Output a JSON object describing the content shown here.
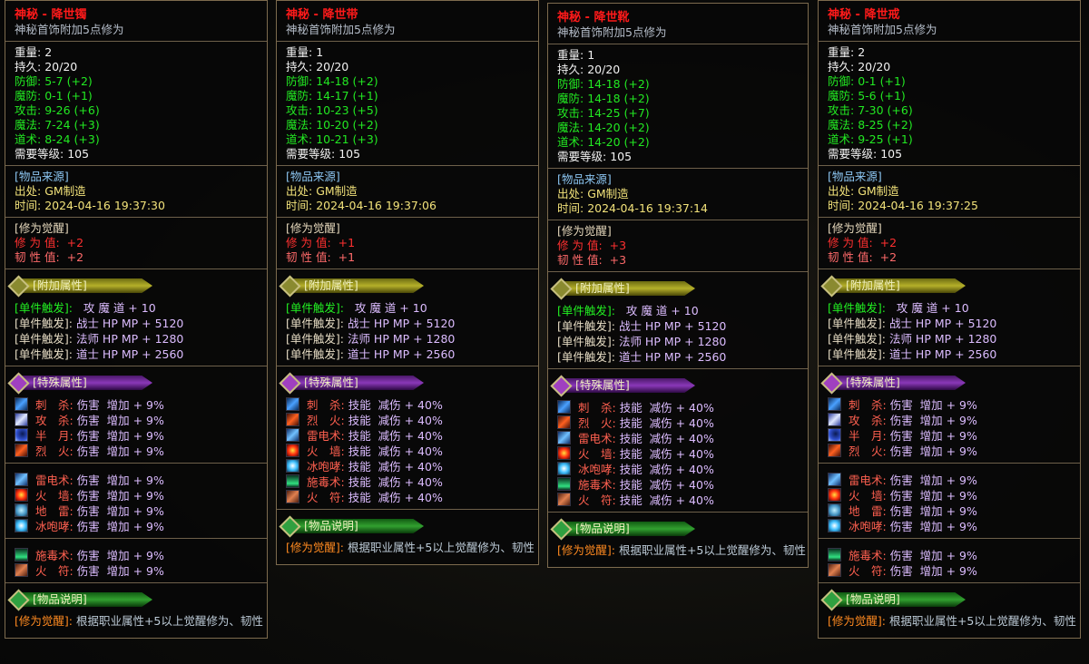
{
  "colors": {
    "title": "#ff1a1a",
    "stat_green": "#22e822",
    "source_header": "#8cc6f2",
    "source_value": "#f2e27a",
    "awaken_value": "#ff3030",
    "skill": "#ff6050",
    "effect": "#dcbcff",
    "desc_tag": "#ff8a20",
    "border": "#7d6b4e"
  },
  "skill_icons": {
    "cisha": "linear-gradient(135deg,#0a2a5a,#4aa0ff 50%,#0a2a5a)",
    "gongsha": "linear-gradient(135deg,#3040a0,#e0e8ff 50%,#3040a0)",
    "banyue": "radial-gradient(circle at 60% 40%,#0a1a50,#3050d0 60%,#a0c0ff)",
    "liehuo": "linear-gradient(135deg,#401008,#ff6020 50%,#401008)",
    "leidian": "linear-gradient(135deg,#10306a,#70c0ff 50%,#10306a)",
    "huoqiang": "radial-gradient(circle,#ffe040,#ff3010 50%,#400808)",
    "dilei": "radial-gradient(circle,#c0f0ff,#4090c0 60%,#203040)",
    "bingpaoxiao": "radial-gradient(circle,#ffffff,#40c0ff 50%,#104060)",
    "shidu": "linear-gradient(180deg,#0a3020,#30e080 70%,#0a3020)",
    "huofu": "linear-gradient(135deg,#502010,#e08050 50%,#502010)"
  },
  "panels": [
    {
      "title": "神秘 - 降世镯",
      "subtitle": "神秘首饰附加5点修为",
      "stats": [
        {
          "label": "重量",
          "value": "2",
          "color": "white"
        },
        {
          "label": "持久",
          "value": "20/20",
          "color": "white"
        },
        {
          "label": "防御",
          "value": "5-7 (+2)",
          "color": "green"
        },
        {
          "label": "魔防",
          "value": "0-1 (+1)",
          "color": "green"
        },
        {
          "label": "攻击",
          "value": "9-26 (+6)",
          "color": "green"
        },
        {
          "label": "魔法",
          "value": "7-24 (+3)",
          "color": "green"
        },
        {
          "label": "道术",
          "value": "8-24 (+3)",
          "color": "green"
        },
        {
          "label": "需要等级",
          "value": "105",
          "color": "white"
        }
      ],
      "source": {
        "header": "[物品来源]",
        "origin_label": "出处",
        "origin": "GM制造",
        "time_label": "时间",
        "time": "2024-04-16 19:37:30"
      },
      "awaken": {
        "header": "[修为觉醒]",
        "rows": [
          {
            "label": "修 为 值:",
            "value": "+2",
            "color": "red"
          },
          {
            "label": "韧 性 值:",
            "value": "+2",
            "color": "pink"
          }
        ]
      },
      "extra": {
        "header": "[附加属性]",
        "rows": [
          {
            "tag": "[单件触发]:",
            "text": "   攻 魔 道 + 10",
            "hl": true
          },
          {
            "tag": "[单件触发]:",
            "text": " 战士 HP MP + 5120"
          },
          {
            "tag": "[单件触发]:",
            "text": " 法师 HP MP + 1280"
          },
          {
            "tag": "[单件触发]:",
            "text": " 道士 HP MP + 2560"
          }
        ]
      },
      "special": {
        "header": "[特殊属性]",
        "groups": [
          [
            {
              "icon": "cisha",
              "skill": "刺　杀:",
              "effect": " 伤害  增加 + 9%"
            },
            {
              "icon": "gongsha",
              "skill": "攻　杀:",
              "effect": " 伤害  增加 + 9%"
            },
            {
              "icon": "banyue",
              "skill": "半　月:",
              "effect": " 伤害  增加 + 9%"
            },
            {
              "icon": "liehuo",
              "skill": "烈　火:",
              "effect": " 伤害  增加 + 9%"
            }
          ],
          [
            {
              "icon": "leidian",
              "skill": "雷电术:",
              "effect": " 伤害  增加 + 9%"
            },
            {
              "icon": "huoqiang",
              "skill": "火　墙:",
              "effect": " 伤害  增加 + 9%"
            },
            {
              "icon": "dilei",
              "skill": "地　雷:",
              "effect": " 伤害  增加 + 9%"
            },
            {
              "icon": "bingpaoxiao",
              "skill": "冰咆哮:",
              "effect": " 伤害  增加 + 9%"
            }
          ],
          [
            {
              "icon": "shidu",
              "skill": "施毒术:",
              "effect": " 伤害  增加 + 9%"
            },
            {
              "icon": "huofu",
              "skill": "火　符:",
              "effect": " 伤害  增加 + 9%"
            }
          ]
        ]
      },
      "desc": {
        "header": "[物品说明]",
        "tag": "[修为觉醒]:",
        "text": " 根据职业属性+5以上觉醒修为、韧性"
      }
    },
    {
      "title": "神秘 - 降世带",
      "subtitle": "神秘首饰附加5点修为",
      "stats": [
        {
          "label": "重量",
          "value": "1",
          "color": "white"
        },
        {
          "label": "持久",
          "value": "20/20",
          "color": "white"
        },
        {
          "label": "防御",
          "value": "14-18 (+2)",
          "color": "green"
        },
        {
          "label": "魔防",
          "value": "14-17 (+1)",
          "color": "green"
        },
        {
          "label": "攻击",
          "value": "10-23 (+5)",
          "color": "green"
        },
        {
          "label": "魔法",
          "value": "10-20 (+2)",
          "color": "green"
        },
        {
          "label": "道术",
          "value": "10-21 (+3)",
          "color": "green"
        },
        {
          "label": "需要等级",
          "value": "105",
          "color": "white"
        }
      ],
      "source": {
        "header": "[物品来源]",
        "origin_label": "出处",
        "origin": "GM制造",
        "time_label": "时间",
        "time": "2024-04-16 19:37:06"
      },
      "awaken": {
        "header": "[修为觉醒]",
        "rows": [
          {
            "label": "修 为 值:",
            "value": "+1",
            "color": "red"
          },
          {
            "label": "韧 性 值:",
            "value": "+1",
            "color": "pink"
          }
        ]
      },
      "extra": {
        "header": "[附加属性]",
        "rows": [
          {
            "tag": "[单件触发]:",
            "text": "   攻 魔 道 + 10",
            "hl": true
          },
          {
            "tag": "[单件触发]:",
            "text": " 战士 HP MP + 5120"
          },
          {
            "tag": "[单件触发]:",
            "text": " 法师 HP MP + 1280"
          },
          {
            "tag": "[单件触发]:",
            "text": " 道士 HP MP + 2560"
          }
        ]
      },
      "special": {
        "header": "[特殊属性]",
        "groups": [
          [
            {
              "icon": "cisha",
              "skill": "刺　杀:",
              "effect": " 技能  减伤 + 40%"
            },
            {
              "icon": "liehuo",
              "skill": "烈　火:",
              "effect": " 技能  减伤 + 40%"
            },
            {
              "icon": "leidian",
              "skill": "雷电术:",
              "effect": " 技能  减伤 + 40%"
            },
            {
              "icon": "huoqiang",
              "skill": "火　墙:",
              "effect": " 技能  减伤 + 40%"
            },
            {
              "icon": "bingpaoxiao",
              "skill": "冰咆哮:",
              "effect": " 技能  减伤 + 40%"
            },
            {
              "icon": "shidu",
              "skill": "施毒术:",
              "effect": " 技能  减伤 + 40%"
            },
            {
              "icon": "huofu",
              "skill": "火　符:",
              "effect": " 技能  减伤 + 40%"
            }
          ]
        ]
      },
      "desc": {
        "header": "[物品说明]",
        "tag": "[修为觉醒]:",
        "text": " 根据职业属性+5以上觉醒修为、韧性"
      }
    },
    {
      "title": "神秘 - 降世靴",
      "subtitle": "神秘首饰附加5点修为",
      "stats": [
        {
          "label": "重量",
          "value": "1",
          "color": "white"
        },
        {
          "label": "持久",
          "value": "20/20",
          "color": "white"
        },
        {
          "label": "防御",
          "value": "14-18 (+2)",
          "color": "green"
        },
        {
          "label": "魔防",
          "value": "14-18 (+2)",
          "color": "green"
        },
        {
          "label": "攻击",
          "value": "14-25 (+7)",
          "color": "green"
        },
        {
          "label": "魔法",
          "value": "14-20 (+2)",
          "color": "green"
        },
        {
          "label": "道术",
          "value": "14-20 (+2)",
          "color": "green"
        },
        {
          "label": "需要等级",
          "value": "105",
          "color": "white"
        }
      ],
      "source": {
        "header": "[物品来源]",
        "origin_label": "出处",
        "origin": "GM制造",
        "time_label": "时间",
        "time": "2024-04-16 19:37:14"
      },
      "awaken": {
        "header": "[修为觉醒]",
        "rows": [
          {
            "label": "修 为 值:",
            "value": "+3",
            "color": "red"
          },
          {
            "label": "韧 性 值:",
            "value": "+3",
            "color": "pink"
          }
        ]
      },
      "extra": {
        "header": "[附加属性]",
        "rows": [
          {
            "tag": "[单件触发]:",
            "text": "   攻 魔 道 + 10",
            "hl": true
          },
          {
            "tag": "[单件触发]:",
            "text": " 战士 HP MP + 5120"
          },
          {
            "tag": "[单件触发]:",
            "text": " 法师 HP MP + 1280"
          },
          {
            "tag": "[单件触发]:",
            "text": " 道士 HP MP + 2560"
          }
        ]
      },
      "special": {
        "header": "[特殊属性]",
        "groups": [
          [
            {
              "icon": "cisha",
              "skill": "刺　杀:",
              "effect": " 技能  减伤 + 40%"
            },
            {
              "icon": "liehuo",
              "skill": "烈　火:",
              "effect": " 技能  减伤 + 40%"
            },
            {
              "icon": "leidian",
              "skill": "雷电术:",
              "effect": " 技能  减伤 + 40%"
            },
            {
              "icon": "huoqiang",
              "skill": "火　墙:",
              "effect": " 技能  减伤 + 40%"
            },
            {
              "icon": "bingpaoxiao",
              "skill": "冰咆哮:",
              "effect": " 技能  减伤 + 40%"
            },
            {
              "icon": "shidu",
              "skill": "施毒术:",
              "effect": " 技能  减伤 + 40%"
            },
            {
              "icon": "huofu",
              "skill": "火　符:",
              "effect": " 技能  减伤 + 40%"
            }
          ]
        ]
      },
      "desc": {
        "header": "[物品说明]",
        "tag": "[修为觉醒]:",
        "text": " 根据职业属性+5以上觉醒修为、韧性"
      }
    },
    {
      "title": "神秘 - 降世戒",
      "subtitle": "神秘首饰附加5点修为",
      "stats": [
        {
          "label": "重量",
          "value": "2",
          "color": "white"
        },
        {
          "label": "持久",
          "value": "20/20",
          "color": "white"
        },
        {
          "label": "防御",
          "value": "0-1 (+1)",
          "color": "green"
        },
        {
          "label": "魔防",
          "value": "5-6 (+1)",
          "color": "green"
        },
        {
          "label": "攻击",
          "value": "7-30 (+6)",
          "color": "green"
        },
        {
          "label": "魔法",
          "value": "8-25 (+2)",
          "color": "green"
        },
        {
          "label": "道术",
          "value": "9-25 (+1)",
          "color": "green"
        },
        {
          "label": "需要等级",
          "value": "105",
          "color": "white"
        }
      ],
      "source": {
        "header": "[物品来源]",
        "origin_label": "出处",
        "origin": "GM制造",
        "time_label": "时间",
        "time": "2024-04-16 19:37:25"
      },
      "awaken": {
        "header": "[修为觉醒]",
        "rows": [
          {
            "label": "修 为 值:",
            "value": "+2",
            "color": "red"
          },
          {
            "label": "韧 性 值:",
            "value": "+2",
            "color": "pink"
          }
        ]
      },
      "extra": {
        "header": "[附加属性]",
        "rows": [
          {
            "tag": "[单件触发]:",
            "text": "   攻 魔 道 + 10",
            "hl": true
          },
          {
            "tag": "[单件触发]:",
            "text": " 战士 HP MP + 5120"
          },
          {
            "tag": "[单件触发]:",
            "text": " 法师 HP MP + 1280"
          },
          {
            "tag": "[单件触发]:",
            "text": " 道士 HP MP + 2560"
          }
        ]
      },
      "special": {
        "header": "[特殊属性]",
        "groups": [
          [
            {
              "icon": "cisha",
              "skill": "刺　杀:",
              "effect": " 伤害  增加 + 9%"
            },
            {
              "icon": "gongsha",
              "skill": "攻　杀:",
              "effect": " 伤害  增加 + 9%"
            },
            {
              "icon": "banyue",
              "skill": "半　月:",
              "effect": " 伤害  增加 + 9%"
            },
            {
              "icon": "liehuo",
              "skill": "烈　火:",
              "effect": " 伤害  增加 + 9%"
            }
          ],
          [
            {
              "icon": "leidian",
              "skill": "雷电术:",
              "effect": " 伤害  增加 + 9%"
            },
            {
              "icon": "huoqiang",
              "skill": "火　墙:",
              "effect": " 伤害  增加 + 9%"
            },
            {
              "icon": "dilei",
              "skill": "地　雷:",
              "effect": " 伤害  增加 + 9%"
            },
            {
              "icon": "bingpaoxiao",
              "skill": "冰咆哮:",
              "effect": " 伤害  增加 + 9%"
            }
          ],
          [
            {
              "icon": "shidu",
              "skill": "施毒术:",
              "effect": " 伤害  增加 + 9%"
            },
            {
              "icon": "huofu",
              "skill": "火　符:",
              "effect": " 伤害  增加 + 9%"
            }
          ]
        ]
      },
      "desc": {
        "header": "[物品说明]",
        "tag": "[修为觉醒]:",
        "text": " 根据职业属性+5以上觉醒修为、韧性"
      }
    }
  ]
}
